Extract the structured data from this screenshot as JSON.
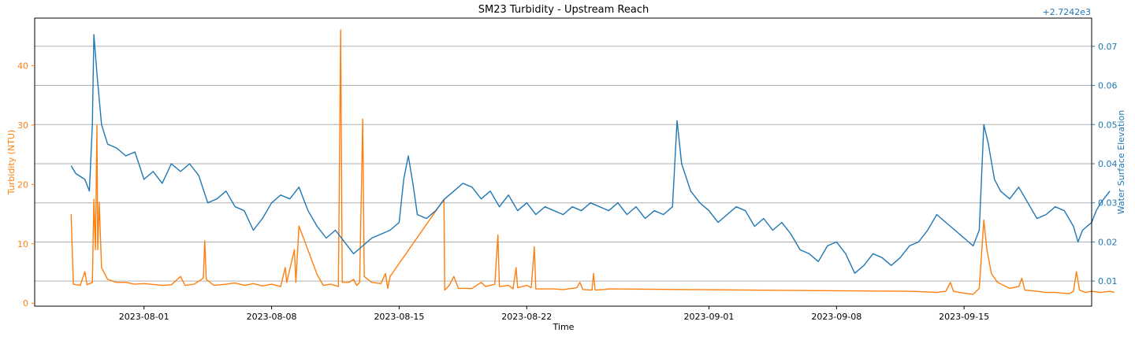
{
  "chart_data": {
    "type": "line",
    "title": "SM23 Turbidity - Upstream Reach",
    "xlabel": "Time",
    "x_ticks": [
      "2023-08-01",
      "2023-08-08",
      "2023-08-15",
      "2023-08-22",
      "2023-09-01",
      "2023-09-08",
      "2023-09-15"
    ],
    "xlim": [
      "2023-07-26",
      "2023-09-22"
    ],
    "grid": "horizontal (right axis)",
    "left_axis": {
      "label": "Turbidity (NTU)",
      "color": "#ff7f0e",
      "ylim": [
        -0.5,
        48
      ],
      "ticks": [
        "0",
        "10",
        "20",
        "30",
        "40"
      ]
    },
    "right_axis": {
      "label": "Water Surface Elevation",
      "color": "#1f77b4",
      "offset_text": "+2.7242e3",
      "ylim": [
        0.0036,
        0.0772
      ],
      "ticks": [
        "0.01",
        "0.02",
        "0.03",
        "0.04",
        "0.05",
        "0.06",
        "0.07"
      ]
    },
    "series": [
      {
        "name": "",
        "axis": "left",
        "color": "#ff7f0e",
        "points": [
          [
            "2023-07-28 00:00",
            15.0
          ],
          [
            "2023-07-28 03:00",
            3.2
          ],
          [
            "2023-07-28 12:00",
            3.0
          ],
          [
            "2023-07-28 18:00",
            5.3
          ],
          [
            "2023-07-28 21:00",
            3.1
          ],
          [
            "2023-07-29 04:00",
            3.5
          ],
          [
            "2023-07-29 06:00",
            17.5
          ],
          [
            "2023-07-29 08:00",
            9.0
          ],
          [
            "2023-07-29 10:00",
            30.0
          ],
          [
            "2023-07-29 11:00",
            9.0
          ],
          [
            "2023-07-29 13:00",
            17.0
          ],
          [
            "2023-07-29 16:00",
            6.0
          ],
          [
            "2023-07-30 00:00",
            4.0
          ],
          [
            "2023-07-30 12:00",
            3.5
          ],
          [
            "2023-07-31 00:00",
            3.5
          ],
          [
            "2023-07-31 12:00",
            3.2
          ],
          [
            "2023-08-01 00:00",
            3.3
          ],
          [
            "2023-08-02 00:00",
            3.0
          ],
          [
            "2023-08-02 12:00",
            3.1
          ],
          [
            "2023-08-03 00:00",
            4.5
          ],
          [
            "2023-08-03 06:00",
            3.0
          ],
          [
            "2023-08-03 18:00",
            3.2
          ],
          [
            "2023-08-04 06:00",
            4.2
          ],
          [
            "2023-08-04 08:00",
            10.5
          ],
          [
            "2023-08-04 10:00",
            4.0
          ],
          [
            "2023-08-04 20:00",
            3.0
          ],
          [
            "2023-08-05 12:00",
            3.2
          ],
          [
            "2023-08-06 00:00",
            3.4
          ],
          [
            "2023-08-06 12:00",
            3.0
          ],
          [
            "2023-08-07 00:00",
            3.3
          ],
          [
            "2023-08-07 12:00",
            2.9
          ],
          [
            "2023-08-08 00:00",
            3.2
          ],
          [
            "2023-08-08 12:00",
            2.8
          ],
          [
            "2023-08-08 18:00",
            6.0
          ],
          [
            "2023-08-08 20:00",
            3.5
          ],
          [
            "2023-08-09 06:00",
            9.0
          ],
          [
            "2023-08-09 08:00",
            3.5
          ],
          [
            "2023-08-09 12:00",
            13.0
          ],
          [
            "2023-08-10 12:00",
            4.8
          ],
          [
            "2023-08-10 20:00",
            3.0
          ],
          [
            "2023-08-11 06:00",
            3.2
          ],
          [
            "2023-08-11 16:00",
            2.8
          ],
          [
            "2023-08-11 19:00",
            46.0
          ],
          [
            "2023-08-11 21:00",
            3.5
          ],
          [
            "2023-08-12 06:00",
            3.5
          ],
          [
            "2023-08-12 12:00",
            4.0
          ],
          [
            "2023-08-12 16:00",
            3.0
          ],
          [
            "2023-08-12 20:00",
            3.5
          ],
          [
            "2023-08-13 00:00",
            31.0
          ],
          [
            "2023-08-13 02:00",
            4.5
          ],
          [
            "2023-08-13 12:00",
            3.5
          ],
          [
            "2023-08-14 00:00",
            3.3
          ],
          [
            "2023-08-14 06:00",
            5.0
          ],
          [
            "2023-08-14 09:00",
            2.5
          ],
          [
            "2023-08-14 12:00",
            4.5
          ],
          [
            "2023-08-17 11:00",
            17.5
          ],
          [
            "2023-08-17 12:00",
            2.2
          ],
          [
            "2023-08-17 18:00",
            3.0
          ],
          [
            "2023-08-18 00:00",
            4.5
          ],
          [
            "2023-08-18 06:00",
            2.5
          ],
          [
            "2023-08-19 00:00",
            2.5
          ],
          [
            "2023-08-19 12:00",
            3.5
          ],
          [
            "2023-08-19 18:00",
            2.8
          ],
          [
            "2023-08-20 06:00",
            3.2
          ],
          [
            "2023-08-20 10:00",
            11.5
          ],
          [
            "2023-08-20 12:00",
            2.8
          ],
          [
            "2023-08-21 00:00",
            3.0
          ],
          [
            "2023-08-21 06:00",
            2.4
          ],
          [
            "2023-08-21 10:00",
            6.0
          ],
          [
            "2023-08-21 12:00",
            2.6
          ],
          [
            "2023-08-22 00:00",
            3.0
          ],
          [
            "2023-08-22 06:00",
            2.6
          ],
          [
            "2023-08-22 10:00",
            9.5
          ],
          [
            "2023-08-22 12:00",
            2.4
          ],
          [
            "2023-08-23 12:00",
            2.4
          ],
          [
            "2023-08-24 00:00",
            2.3
          ],
          [
            "2023-08-24 18:00",
            2.6
          ],
          [
            "2023-08-24 22:00",
            3.5
          ],
          [
            "2023-08-25 02:00",
            2.3
          ],
          [
            "2023-08-25 14:00",
            2.2
          ],
          [
            "2023-08-25 16:00",
            5.0
          ],
          [
            "2023-08-25 18:00",
            2.2
          ],
          [
            "2023-08-26 06:00",
            2.3
          ],
          [
            "2023-08-26 12:00",
            2.4
          ],
          [
            "2023-09-12 00:00",
            2.0
          ],
          [
            "2023-09-13 00:00",
            1.9
          ],
          [
            "2023-09-13 12:00",
            1.8
          ],
          [
            "2023-09-14 00:00",
            2.0
          ],
          [
            "2023-09-14 06:00",
            3.5
          ],
          [
            "2023-09-14 10:00",
            2.0
          ],
          [
            "2023-09-14 18:00",
            1.8
          ],
          [
            "2023-09-15 00:00",
            1.7
          ],
          [
            "2023-09-15 12:00",
            1.5
          ],
          [
            "2023-09-15 20:00",
            2.5
          ],
          [
            "2023-09-16 02:00",
            14.0
          ],
          [
            "2023-09-16 06:00",
            9.0
          ],
          [
            "2023-09-16 12:00",
            5.0
          ],
          [
            "2023-09-16 20:00",
            3.5
          ],
          [
            "2023-09-17 12:00",
            2.5
          ],
          [
            "2023-09-18 00:00",
            2.8
          ],
          [
            "2023-09-18 04:00",
            4.2
          ],
          [
            "2023-09-18 08:00",
            2.2
          ],
          [
            "2023-09-19 00:00",
            2.0
          ],
          [
            "2023-09-19 12:00",
            1.8
          ],
          [
            "2023-09-20 00:00",
            1.8
          ],
          [
            "2023-09-20 18:00",
            1.6
          ],
          [
            "2023-09-21 00:00",
            2.0
          ],
          [
            "2023-09-21 04:00",
            5.3
          ],
          [
            "2023-09-21 08:00",
            2.2
          ],
          [
            "2023-09-21 16:00",
            1.8
          ],
          [
            "2023-09-22 00:00",
            2.0
          ],
          [
            "2023-09-22 12:00",
            1.8
          ],
          [
            "2023-09-23 00:00",
            2.0
          ],
          [
            "2023-09-23 06:00",
            1.8
          ]
        ]
      },
      {
        "name": "",
        "axis": "right",
        "color": "#1f77b4",
        "points": [
          [
            "2023-07-28 00:00",
            0.0395
          ],
          [
            "2023-07-28 06:00",
            0.0375
          ],
          [
            "2023-07-28 18:00",
            0.036
          ],
          [
            "2023-07-29 00:00",
            0.033
          ],
          [
            "2023-07-29 04:00",
            0.05
          ],
          [
            "2023-07-29 06:00",
            0.073
          ],
          [
            "2023-07-29 10:00",
            0.063
          ],
          [
            "2023-07-29 16:00",
            0.05
          ],
          [
            "2023-07-30 00:00",
            0.045
          ],
          [
            "2023-07-30 12:00",
            0.044
          ],
          [
            "2023-07-31 00:00",
            0.042
          ],
          [
            "2023-07-31 12:00",
            0.043
          ],
          [
            "2023-08-01 00:00",
            0.036
          ],
          [
            "2023-08-01 12:00",
            0.038
          ],
          [
            "2023-08-02 00:00",
            0.035
          ],
          [
            "2023-08-02 12:00",
            0.04
          ],
          [
            "2023-08-03 00:00",
            0.038
          ],
          [
            "2023-08-03 12:00",
            0.04
          ],
          [
            "2023-08-04 00:00",
            0.037
          ],
          [
            "2023-08-04 12:00",
            0.03
          ],
          [
            "2023-08-05 00:00",
            0.031
          ],
          [
            "2023-08-05 12:00",
            0.033
          ],
          [
            "2023-08-06 00:00",
            0.029
          ],
          [
            "2023-08-06 12:00",
            0.028
          ],
          [
            "2023-08-07 00:00",
            0.023
          ],
          [
            "2023-08-07 12:00",
            0.026
          ],
          [
            "2023-08-08 00:00",
            0.03
          ],
          [
            "2023-08-08 12:00",
            0.032
          ],
          [
            "2023-08-09 00:00",
            0.031
          ],
          [
            "2023-08-09 12:00",
            0.034
          ],
          [
            "2023-08-10 00:00",
            0.028
          ],
          [
            "2023-08-10 12:00",
            0.024
          ],
          [
            "2023-08-11 00:00",
            0.021
          ],
          [
            "2023-08-11 12:00",
            0.023
          ],
          [
            "2023-08-12 00:00",
            0.02
          ],
          [
            "2023-08-12 12:00",
            0.017
          ],
          [
            "2023-08-13 00:00",
            0.019
          ],
          [
            "2023-08-13 12:00",
            0.021
          ],
          [
            "2023-08-14 00:00",
            0.022
          ],
          [
            "2023-08-14 12:00",
            0.023
          ],
          [
            "2023-08-15 00:00",
            0.025
          ],
          [
            "2023-08-15 06:00",
            0.036
          ],
          [
            "2023-08-15 12:00",
            0.042
          ],
          [
            "2023-08-15 18:00",
            0.035
          ],
          [
            "2023-08-16 00:00",
            0.027
          ],
          [
            "2023-08-16 12:00",
            0.026
          ],
          [
            "2023-08-17 00:00",
            0.028
          ],
          [
            "2023-08-17 12:00",
            0.031
          ],
          [
            "2023-08-18 00:00",
            0.033
          ],
          [
            "2023-08-18 12:00",
            0.035
          ],
          [
            "2023-08-19 00:00",
            0.034
          ],
          [
            "2023-08-19 12:00",
            0.031
          ],
          [
            "2023-08-20 00:00",
            0.033
          ],
          [
            "2023-08-20 12:00",
            0.029
          ],
          [
            "2023-08-21 00:00",
            0.032
          ],
          [
            "2023-08-21 12:00",
            0.028
          ],
          [
            "2023-08-22 00:00",
            0.03
          ],
          [
            "2023-08-22 12:00",
            0.027
          ],
          [
            "2023-08-23 00:00",
            0.029
          ],
          [
            "2023-08-23 12:00",
            0.028
          ],
          [
            "2023-08-24 00:00",
            0.027
          ],
          [
            "2023-08-24 12:00",
            0.029
          ],
          [
            "2023-08-25 00:00",
            0.028
          ],
          [
            "2023-08-25 12:00",
            0.03
          ],
          [
            "2023-08-26 00:00",
            0.029
          ],
          [
            "2023-08-26 12:00",
            0.028
          ],
          [
            "2023-08-27 00:00",
            0.03
          ],
          [
            "2023-08-27 12:00",
            0.027
          ],
          [
            "2023-08-28 00:00",
            0.029
          ],
          [
            "2023-08-28 12:00",
            0.026
          ],
          [
            "2023-08-29 00:00",
            0.028
          ],
          [
            "2023-08-29 12:00",
            0.027
          ],
          [
            "2023-08-30 00:00",
            0.029
          ],
          [
            "2023-08-30 06:00",
            0.051
          ],
          [
            "2023-08-30 12:00",
            0.04
          ],
          [
            "2023-08-31 00:00",
            0.033
          ],
          [
            "2023-08-31 12:00",
            0.03
          ],
          [
            "2023-09-01 00:00",
            0.028
          ],
          [
            "2023-09-01 12:00",
            0.025
          ],
          [
            "2023-09-02 00:00",
            0.027
          ],
          [
            "2023-09-02 12:00",
            0.029
          ],
          [
            "2023-09-03 00:00",
            0.028
          ],
          [
            "2023-09-03 12:00",
            0.024
          ],
          [
            "2023-09-04 00:00",
            0.026
          ],
          [
            "2023-09-04 12:00",
            0.023
          ],
          [
            "2023-09-05 00:00",
            0.025
          ],
          [
            "2023-09-05 12:00",
            0.022
          ],
          [
            "2023-09-06 00:00",
            0.018
          ],
          [
            "2023-09-06 12:00",
            0.017
          ],
          [
            "2023-09-07 00:00",
            0.015
          ],
          [
            "2023-09-07 12:00",
            0.019
          ],
          [
            "2023-09-08 00:00",
            0.02
          ],
          [
            "2023-09-08 12:00",
            0.017
          ],
          [
            "2023-09-09 00:00",
            0.012
          ],
          [
            "2023-09-09 12:00",
            0.014
          ],
          [
            "2023-09-10 00:00",
            0.017
          ],
          [
            "2023-09-10 12:00",
            0.016
          ],
          [
            "2023-09-11 00:00",
            0.014
          ],
          [
            "2023-09-11 12:00",
            0.016
          ],
          [
            "2023-09-12 00:00",
            0.019
          ],
          [
            "2023-09-12 12:00",
            0.02
          ],
          [
            "2023-09-13 00:00",
            0.023
          ],
          [
            "2023-09-13 12:00",
            0.027
          ],
          [
            "2023-09-14 00:00",
            0.025
          ],
          [
            "2023-09-14 12:00",
            0.023
          ],
          [
            "2023-09-15 00:00",
            0.021
          ],
          [
            "2023-09-15 12:00",
            0.019
          ],
          [
            "2023-09-15 20:00",
            0.023
          ],
          [
            "2023-09-16 02:00",
            0.05
          ],
          [
            "2023-09-16 08:00",
            0.045
          ],
          [
            "2023-09-16 16:00",
            0.036
          ],
          [
            "2023-09-17 00:00",
            0.033
          ],
          [
            "2023-09-17 12:00",
            0.031
          ],
          [
            "2023-09-18 00:00",
            0.034
          ],
          [
            "2023-09-18 12:00",
            0.03
          ],
          [
            "2023-09-19 00:00",
            0.026
          ],
          [
            "2023-09-19 12:00",
            0.027
          ],
          [
            "2023-09-20 00:00",
            0.029
          ],
          [
            "2023-09-20 12:00",
            0.028
          ],
          [
            "2023-09-21 00:00",
            0.024
          ],
          [
            "2023-09-21 06:00",
            0.02
          ],
          [
            "2023-09-21 12:00",
            0.023
          ],
          [
            "2023-09-22 00:00",
            0.025
          ],
          [
            "2023-09-22 06:00",
            0.028
          ],
          [
            "2023-09-22 12:00",
            0.03
          ],
          [
            "2023-09-23 00:00",
            0.033
          ]
        ]
      }
    ]
  }
}
